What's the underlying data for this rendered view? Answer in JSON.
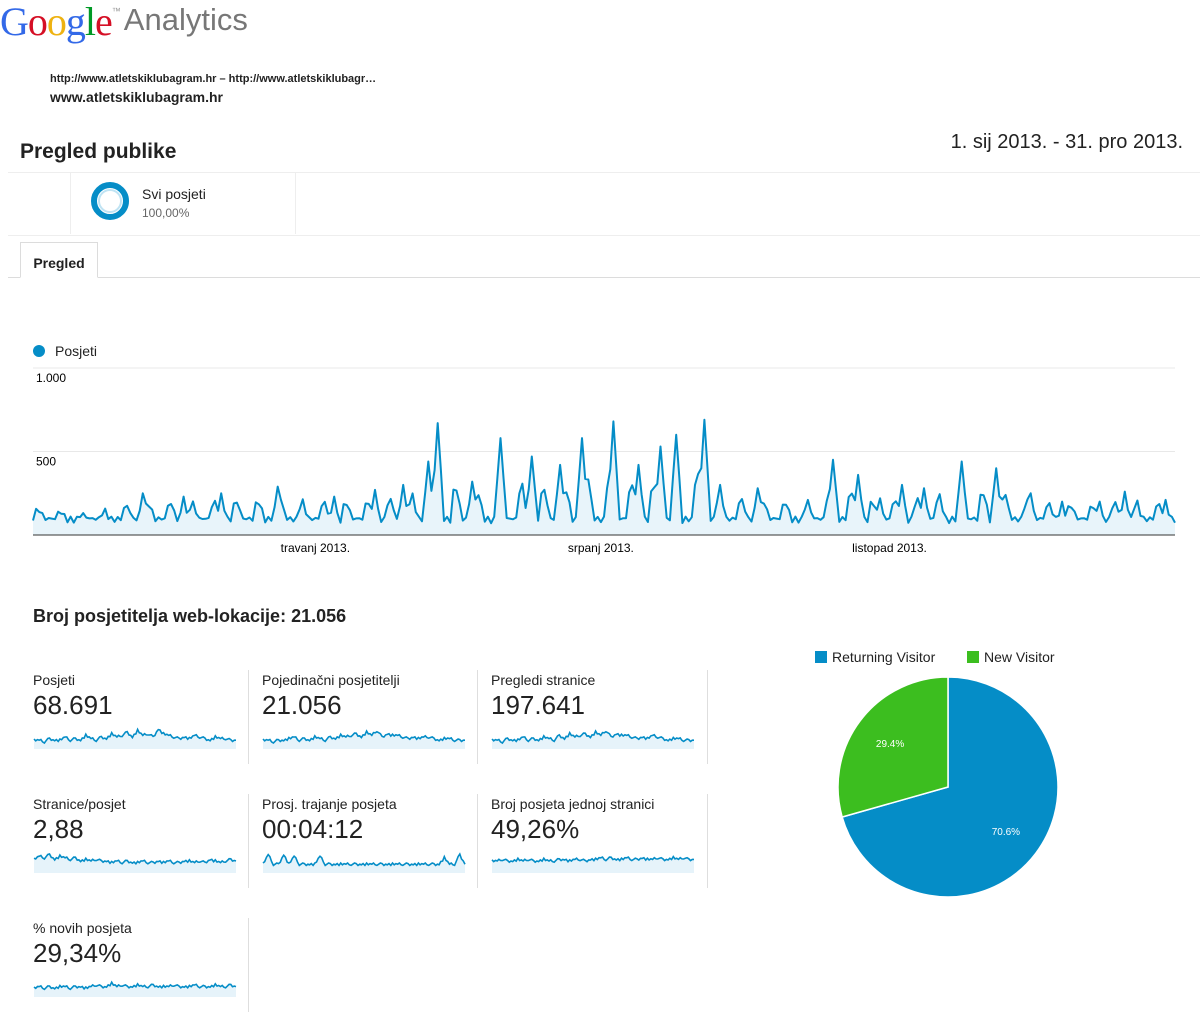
{
  "header": {
    "logo_letters": [
      "G",
      "o",
      "o",
      "g",
      "l",
      "e"
    ],
    "logo_colors": [
      "#3369e8",
      "#d50f25",
      "#eeb211",
      "#3369e8",
      "#009925",
      "#d50f25"
    ],
    "logo_tm": "™",
    "logo_product": "Analytics",
    "account_line": "http://www.atletskiklubagram.hr – http://www.atletskiklubagr…",
    "property": "www.atletskiklubagram.hr",
    "page_title": "Pregled publike",
    "date_range": "1. sij 2013. - 31. pro 2013."
  },
  "segment": {
    "name": "Svi posjeti",
    "percent": "100,00%"
  },
  "tabs": [
    {
      "label": "Pregled",
      "active": true
    }
  ],
  "main_chart_legend": "Posjeti",
  "chart_data": {
    "type": "area",
    "series": [
      {
        "name": "Posjeti",
        "color": "#058dc7"
      }
    ],
    "x_range": [
      "2013-01-01",
      "2013-12-31"
    ],
    "y_ticks": [
      {
        "value": 1000,
        "label": "1.000"
      },
      {
        "value": 500,
        "label": "500"
      }
    ],
    "ylim": [
      0,
      1000
    ],
    "x_ticks": [
      {
        "date": "2013-04-01",
        "label": "travanj 2013."
      },
      {
        "date": "2013-07-01",
        "label": "srpanj 2013."
      },
      {
        "date": "2013-10-01",
        "label": "listopad 2013."
      }
    ],
    "peaks": [
      {
        "date": "2013-01-02",
        "value": 150
      },
      {
        "date": "2013-01-18",
        "value": 60
      },
      {
        "date": "2013-02-05",
        "value": 250
      },
      {
        "date": "2013-02-18",
        "value": 230
      },
      {
        "date": "2013-03-02",
        "value": 250
      },
      {
        "date": "2013-03-20",
        "value": 290
      },
      {
        "date": "2013-04-07",
        "value": 230
      },
      {
        "date": "2013-04-20",
        "value": 270
      },
      {
        "date": "2013-04-29",
        "value": 300
      },
      {
        "date": "2013-05-07",
        "value": 440
      },
      {
        "date": "2013-05-10",
        "value": 670
      },
      {
        "date": "2013-05-21",
        "value": 320
      },
      {
        "date": "2013-05-30",
        "value": 580
      },
      {
        "date": "2013-06-09",
        "value": 470
      },
      {
        "date": "2013-06-18",
        "value": 420
      },
      {
        "date": "2013-06-25",
        "value": 580
      },
      {
        "date": "2013-07-05",
        "value": 680
      },
      {
        "date": "2013-07-13",
        "value": 420
      },
      {
        "date": "2013-07-20",
        "value": 530
      },
      {
        "date": "2013-07-25",
        "value": 600
      },
      {
        "date": "2013-08-03",
        "value": 690
      },
      {
        "date": "2013-08-08",
        "value": 300
      },
      {
        "date": "2013-08-20",
        "value": 280
      },
      {
        "date": "2013-09-05",
        "value": 210
      },
      {
        "date": "2013-09-13",
        "value": 450
      },
      {
        "date": "2013-09-21",
        "value": 360
      },
      {
        "date": "2013-09-28",
        "value": 220
      },
      {
        "date": "2013-10-05",
        "value": 300
      },
      {
        "date": "2013-10-12",
        "value": 280
      },
      {
        "date": "2013-10-24",
        "value": 440
      },
      {
        "date": "2013-11-04",
        "value": 400
      },
      {
        "date": "2013-11-15",
        "value": 250
      },
      {
        "date": "2013-11-25",
        "value": 200
      },
      {
        "date": "2013-12-07",
        "value": 200
      },
      {
        "date": "2013-12-15",
        "value": 260
      },
      {
        "date": "2013-12-28",
        "value": 210
      }
    ]
  },
  "summary": {
    "title": "Broj posjetitelja web-lokacije: 21.056",
    "metrics": [
      {
        "id": "posjeti",
        "label": "Posjeti",
        "value": "68.691",
        "spark": [
          3,
          3,
          2,
          4,
          3,
          3,
          5,
          3,
          4,
          3,
          6,
          4,
          3,
          5,
          4,
          7,
          5,
          6,
          8,
          5,
          9,
          6,
          7,
          5,
          10,
          7,
          6,
          5,
          4,
          5,
          4,
          6,
          5,
          4,
          3,
          5,
          4,
          4,
          3,
          3
        ]
      },
      {
        "id": "posjetitelji",
        "label": "Pojedinačni posjetitelji",
        "value": "21.056",
        "spark": [
          3,
          3,
          2,
          3,
          3,
          4,
          5,
          3,
          4,
          3,
          5,
          4,
          3,
          5,
          4,
          6,
          5,
          6,
          7,
          5,
          8,
          6,
          9,
          5,
          7,
          6,
          6,
          5,
          4,
          5,
          4,
          5,
          5,
          4,
          3,
          4,
          4,
          3,
          3,
          3
        ]
      },
      {
        "id": "pregledi",
        "label": "Pregledi stranice",
        "value": "197.641",
        "spark": [
          3,
          3,
          2,
          4,
          3,
          3,
          5,
          3,
          4,
          3,
          5,
          4,
          3,
          6,
          4,
          7,
          5,
          6,
          7,
          5,
          8,
          6,
          9,
          5,
          7,
          6,
          6,
          5,
          4,
          5,
          4,
          6,
          5,
          4,
          3,
          4,
          4,
          3,
          3,
          3
        ]
      },
      {
        "id": "stranice",
        "label": "Stranice/posjet",
        "value": "2,88",
        "spark": [
          6,
          8,
          7,
          9,
          6,
          8,
          7,
          6,
          7,
          5,
          6,
          5,
          6,
          5,
          5,
          4,
          5,
          4,
          5,
          4,
          4,
          5,
          4,
          4,
          5,
          4,
          5,
          4,
          4,
          5,
          5,
          4,
          5,
          4,
          6,
          5,
          4,
          5,
          6,
          5
        ]
      },
      {
        "id": "trajanje",
        "label": "Prosj. trajanje posjeta",
        "value": "00:04:12",
        "spark": [
          3,
          9,
          3,
          3,
          9,
          3,
          8,
          3,
          3,
          3,
          3,
          8,
          3,
          3,
          3,
          3,
          3,
          3,
          3,
          3,
          3,
          3,
          3,
          3,
          3,
          3,
          3,
          3,
          3,
          3,
          3,
          3,
          3,
          3,
          3,
          7,
          3,
          3,
          9,
          3
        ]
      },
      {
        "id": "jednoj",
        "label": "Broj posjeta jednoj stranici",
        "value": "49,26%",
        "spark": [
          5,
          5,
          6,
          5,
          5,
          6,
          5,
          6,
          5,
          5,
          6,
          5,
          5,
          6,
          6,
          5,
          6,
          6,
          5,
          6,
          6,
          7,
          6,
          7,
          6,
          6,
          7,
          6,
          6,
          7,
          6,
          6,
          7,
          6,
          6,
          7,
          6,
          7,
          6,
          6
        ]
      },
      {
        "id": "novih",
        "label": "% novih posjeta",
        "value": "29,34%",
        "spark": [
          3,
          4,
          3,
          4,
          3,
          4,
          4,
          3,
          4,
          4,
          3,
          4,
          5,
          4,
          4,
          6,
          4,
          5,
          4,
          4,
          5,
          4,
          4,
          5,
          4,
          4,
          4,
          5,
          4,
          4,
          4,
          5,
          4,
          4,
          4,
          5,
          4,
          4,
          5,
          4
        ]
      }
    ]
  },
  "pie": {
    "legend": [
      {
        "label": "Returning Visitor",
        "color": "#058dc7"
      },
      {
        "label": "New Visitor",
        "color": "#3cbe1f"
      }
    ],
    "slices": [
      {
        "label": "70.6%",
        "value": 70.6,
        "color": "#058dc7"
      },
      {
        "label": "29.4%",
        "value": 29.4,
        "color": "#3cbe1f"
      }
    ]
  }
}
